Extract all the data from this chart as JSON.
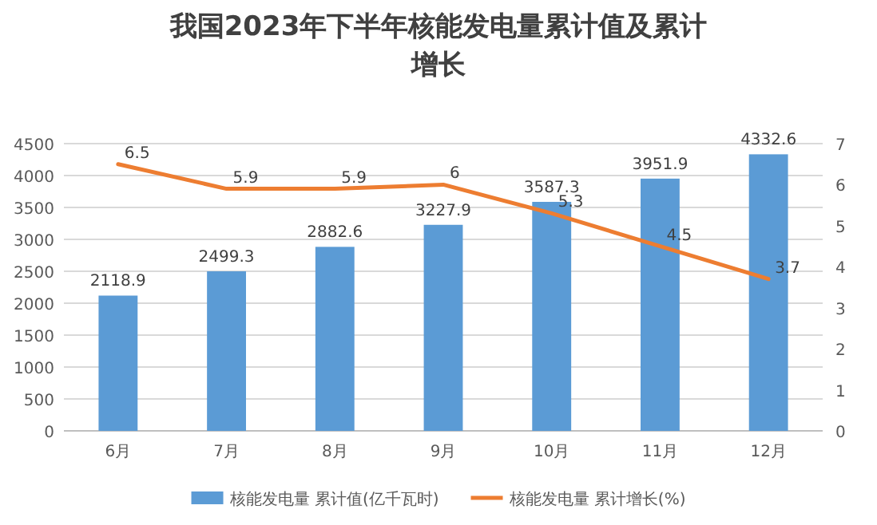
{
  "chart_data": {
    "type": "bar",
    "title": "我国2023年下半年核能发电量累计值及累计增长",
    "categories": [
      "6月",
      "7月",
      "8月",
      "9月",
      "10月",
      "11月",
      "12月"
    ],
    "series": [
      {
        "name": "核能发电量 累计值(亿千瓦时)",
        "color": "#5b9bd5",
        "values": [
          2118.9,
          2499.3,
          2882.6,
          3227.9,
          3587.3,
          3951.9,
          4332.6
        ]
      },
      {
        "name": "核能发电量 累计增长(%)",
        "type": "line",
        "axis": "y2",
        "color": "#ed7d31",
        "values": [
          6.5,
          5.9,
          5.9,
          6,
          5.3,
          4.5,
          3.7
        ]
      }
    ],
    "ylim": [
      0,
      4500
    ],
    "yticks": [
      0,
      500,
      1000,
      1500,
      2000,
      2500,
      3000,
      3500,
      4000,
      4500
    ],
    "y2lim": [
      0,
      7
    ],
    "y2ticks": [
      0,
      1,
      2,
      3,
      4,
      5,
      6,
      7
    ],
    "grid": "y",
    "legend": "bottom",
    "data_labels": true,
    "marker": "none",
    "line_style": "solid"
  }
}
